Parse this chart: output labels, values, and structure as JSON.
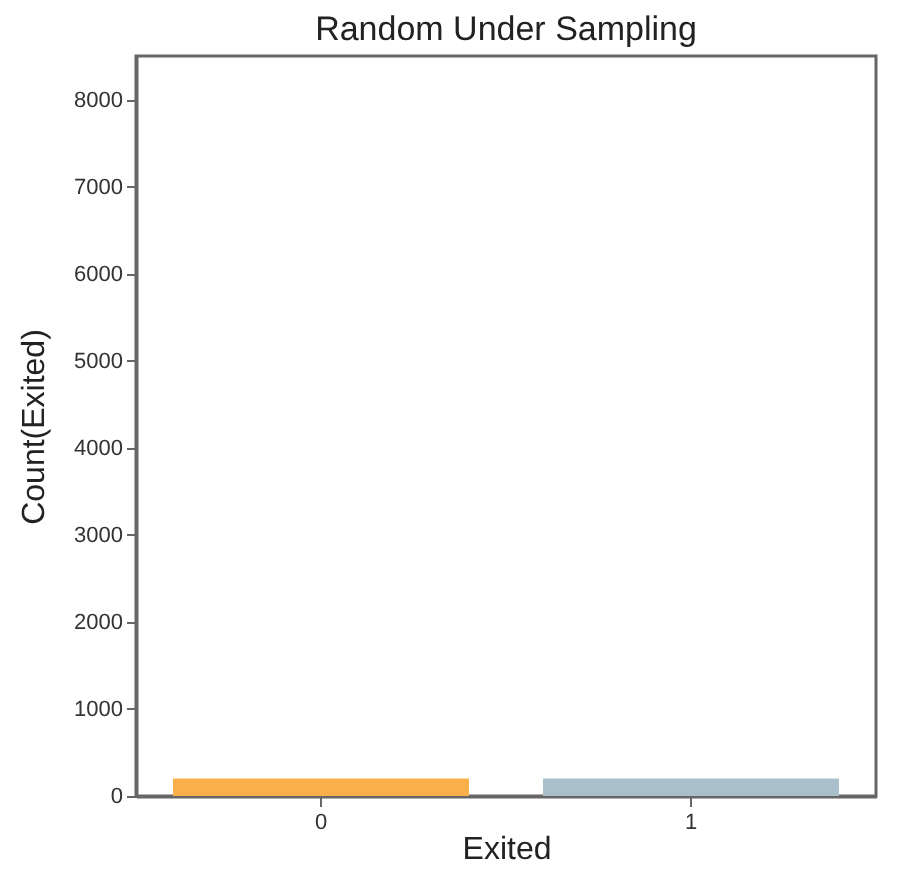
{
  "chart_data": {
    "type": "bar",
    "title": "Random Under Sampling",
    "xlabel": "Exited",
    "ylabel": "Count(Exited)",
    "categories": [
      "0",
      "1"
    ],
    "values": [
      200,
      200
    ],
    "colors": [
      "#f9b04a",
      "#a9bfca"
    ],
    "ylim": [
      0,
      8500
    ],
    "yticks": [
      0,
      1000,
      2000,
      3000,
      4000,
      5000,
      6000,
      7000,
      8000
    ],
    "grid": false
  }
}
